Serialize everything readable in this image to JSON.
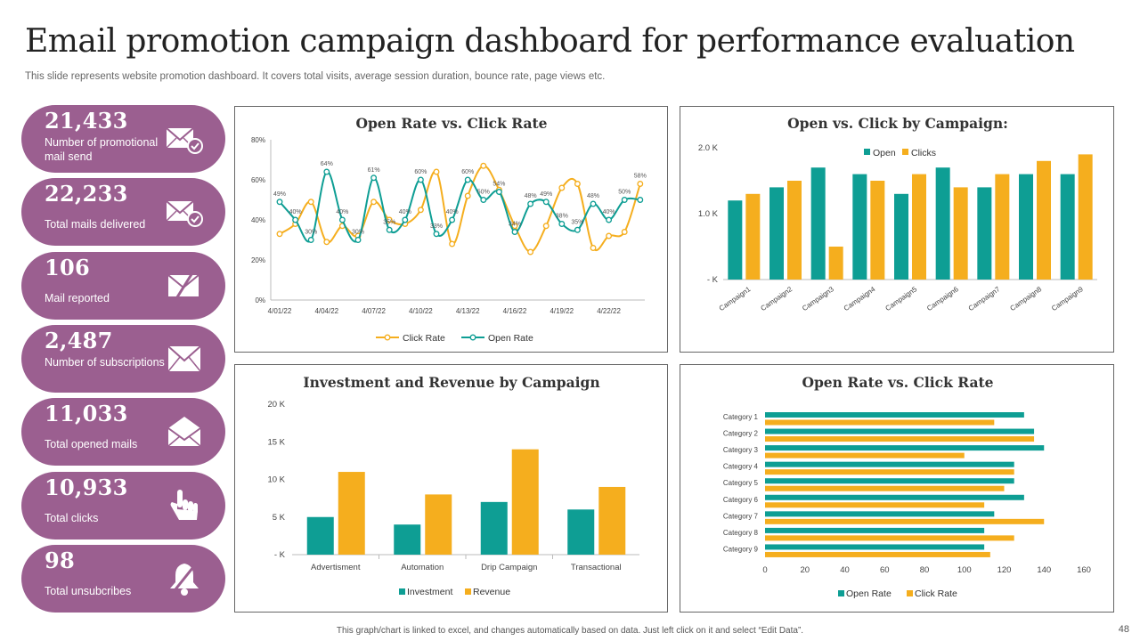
{
  "header": {
    "title": "Email promotion campaign dashboard for performance evaluation",
    "subtitle": "This slide represents website promotion dashboard. It covers total visits, average session duration, bounce rate, page views etc."
  },
  "kpis": [
    {
      "value": "21,433",
      "label": "Number of promotional mail send",
      "icon": "mail-check-icon"
    },
    {
      "value": "22,233",
      "label": "Total mails delivered",
      "icon": "mail-check-icon"
    },
    {
      "value": "106",
      "label": "Mail reported",
      "icon": "mail-slash-icon"
    },
    {
      "value": "2,487",
      "label": "Number of subscriptions",
      "icon": "mail-icon"
    },
    {
      "value": "11,033",
      "label": "Total opened mails",
      "icon": "mail-icon"
    },
    {
      "value": "10,933",
      "label": "Total clicks",
      "icon": "pointer-hand-icon"
    },
    {
      "value": "98",
      "label": "Total unsubcribes",
      "icon": "bell-slash-icon"
    }
  ],
  "colors": {
    "teal": "#0e9e94",
    "orange": "#f5ae1e",
    "purple": "#9b5f90"
  },
  "chart_data": [
    {
      "id": "open-click-line",
      "type": "line",
      "title": "Open Rate vs. Click Rate",
      "ylim": [
        0,
        80
      ],
      "yticks": [
        "0%",
        "20%",
        "40%",
        "60%",
        "80%"
      ],
      "xticks": [
        "4/01/22",
        "4/04/22",
        "4/07/22",
        "4/10/22",
        "4/13/22",
        "4/16/22",
        "4/19/22",
        "4/22/22"
      ],
      "series": [
        {
          "name": "Click Rate",
          "color": "#f5ae1e",
          "values": [
            33,
            38,
            49,
            29,
            37,
            32,
            49,
            40,
            38,
            45,
            64,
            28,
            52,
            67,
            55,
            37,
            24,
            37,
            56,
            58,
            26,
            32,
            34,
            58
          ]
        },
        {
          "name": "Open Rate",
          "color": "#0e9e94",
          "values": [
            49,
            40,
            30,
            64,
            40,
            30,
            61,
            35,
            40,
            60,
            33,
            40,
            60,
            50,
            54,
            34,
            48,
            49,
            38,
            35,
            48,
            40,
            50,
            50
          ]
        }
      ],
      "labels": [
        {
          "i": 0,
          "s": 1,
          "t": "49%"
        },
        {
          "i": 1,
          "s": 1,
          "t": "40%"
        },
        {
          "i": 2,
          "s": 1,
          "t": "30%"
        },
        {
          "i": 3,
          "s": 1,
          "t": "64%"
        },
        {
          "i": 4,
          "s": 1,
          "t": "40%"
        },
        {
          "i": 5,
          "s": 1,
          "t": "30%"
        },
        {
          "i": 6,
          "s": 1,
          "t": "61%"
        },
        {
          "i": 7,
          "s": 1,
          "t": "35%"
        },
        {
          "i": 8,
          "s": 1,
          "t": "40%"
        },
        {
          "i": 9,
          "s": 1,
          "t": "60%"
        },
        {
          "i": 10,
          "s": 1,
          "t": "33%"
        },
        {
          "i": 11,
          "s": 1,
          "t": "40%"
        },
        {
          "i": 12,
          "s": 1,
          "t": "60%"
        },
        {
          "i": 13,
          "s": 1,
          "t": "50%"
        },
        {
          "i": 14,
          "s": 1,
          "t": "54%"
        },
        {
          "i": 15,
          "s": 1,
          "t": "34%"
        },
        {
          "i": 16,
          "s": 1,
          "t": "48%"
        },
        {
          "i": 17,
          "s": 1,
          "t": "49%"
        },
        {
          "i": 18,
          "s": 1,
          "t": "38%"
        },
        {
          "i": 19,
          "s": 1,
          "t": "35%"
        },
        {
          "i": 20,
          "s": 1,
          "t": "48%"
        },
        {
          "i": 21,
          "s": 1,
          "t": "40%"
        },
        {
          "i": 22,
          "s": 1,
          "t": "50%"
        },
        {
          "i": 23,
          "s": 0,
          "t": "58%"
        }
      ],
      "legend": [
        "Click Rate",
        "Open Rate"
      ]
    },
    {
      "id": "campaign-bars",
      "type": "bar",
      "title": "Open vs. Click by Campaign:",
      "categories": [
        "Campaign1",
        "Campaign2",
        "Campaign3",
        "Campaign4",
        "Campaign5",
        "Campaign6",
        "Campaign7",
        "Campaign8",
        "Campaign9"
      ],
      "ylim": [
        0,
        2000
      ],
      "yticks": [
        "- K",
        "1.0 K",
        "2.0 K"
      ],
      "series": [
        {
          "name": "Open",
          "color": "#0e9e94",
          "values": [
            1200,
            1400,
            1700,
            1600,
            1300,
            1700,
            1400,
            1600,
            1600
          ]
        },
        {
          "name": "Clicks",
          "color": "#f5ae1e",
          "values": [
            1300,
            1500,
            500,
            1500,
            1600,
            1400,
            1600,
            1800,
            1900
          ]
        }
      ],
      "legend": [
        "Open",
        "Clicks"
      ]
    },
    {
      "id": "investment-revenue",
      "type": "bar",
      "title": "Investment and Revenue by Campaign",
      "categories": [
        "Advertisment",
        "Automation",
        "Drip Campaign",
        "Transactional"
      ],
      "ylim": [
        0,
        20000
      ],
      "yticks": [
        "- K",
        "5 K",
        "10 K",
        "15 K",
        "20 K"
      ],
      "series": [
        {
          "name": "Investment",
          "color": "#0e9e94",
          "values": [
            5000,
            4000,
            7000,
            6000
          ]
        },
        {
          "name": "Revenue",
          "color": "#f5ae1e",
          "values": [
            11000,
            8000,
            14000,
            9000
          ]
        }
      ],
      "legend": [
        "Investment",
        "Revenue"
      ]
    },
    {
      "id": "category-hbar",
      "type": "bar",
      "orientation": "horizontal",
      "title": "Open Rate vs. Click Rate",
      "categories": [
        "Category 1",
        "Category 2",
        "Category 3",
        "Category 4",
        "Category 5",
        "Category 6",
        "Category 7",
        "Category 8",
        "Category 9"
      ],
      "xlim": [
        0,
        160
      ],
      "xticks": [
        "0",
        "20",
        "40",
        "60",
        "80",
        "100",
        "120",
        "140",
        "160"
      ],
      "series": [
        {
          "name": "Open Rate",
          "color": "#0e9e94",
          "values": [
            130,
            135,
            140,
            125,
            125,
            130,
            115,
            110,
            110
          ]
        },
        {
          "name": "Click Rate",
          "color": "#f5ae1e",
          "values": [
            115,
            135,
            100,
            125,
            120,
            110,
            140,
            125,
            113
          ]
        }
      ],
      "legend": [
        "Open Rate",
        "Click Rate"
      ]
    }
  ],
  "footer": {
    "note": "This graph/chart is linked to excel, and changes automatically based on data. Just left click on it and select “Edit Data”.",
    "page_number": "48"
  }
}
